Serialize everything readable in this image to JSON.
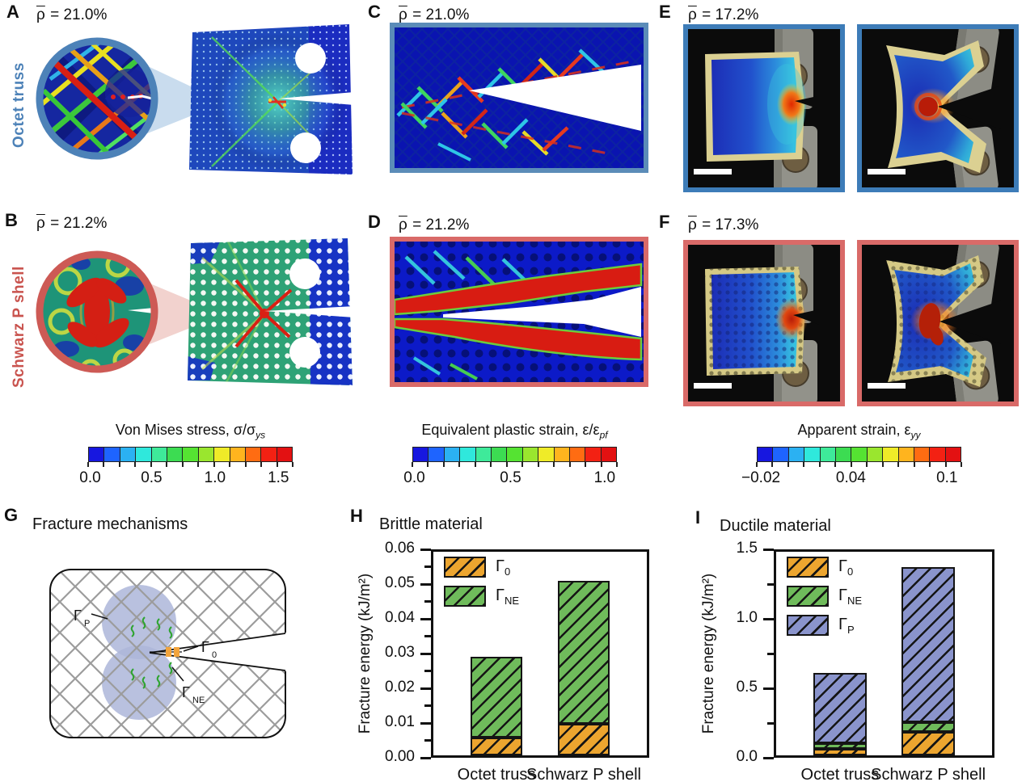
{
  "panels": {
    "a": {
      "letter": "A",
      "rho": "ρ",
      "density": " = 21.0%",
      "side_label": "Octet truss",
      "accent": "#4D82B8"
    },
    "b": {
      "letter": "B",
      "rho": "ρ",
      "density": " = 21.2%",
      "side_label": "Schwarz P shell",
      "accent": "#C9534E"
    },
    "c": {
      "letter": "C",
      "rho": "ρ",
      "density": " = 21.0%",
      "frame_color": "#5B8CB8"
    },
    "d": {
      "letter": "D",
      "rho": "ρ",
      "density": " = 21.2%",
      "frame_color": "#D96A68"
    },
    "e": {
      "letter": "E",
      "rho": "ρ",
      "density": " = 17.2%",
      "frame_color": "#3D7CB8"
    },
    "f": {
      "letter": "F",
      "rho": "ρ",
      "density": " = 17.3%",
      "frame_color": "#D96A68"
    },
    "g": {
      "letter": "G",
      "title": "Fracture mechanisms",
      "gamma_p": "Γ",
      "gamma_p_sub": "P",
      "gamma_0": "Γ",
      "gamma_0_sub": "0",
      "gamma_ne": "Γ",
      "gamma_ne_sub": "NE"
    },
    "h": {
      "letter": "H",
      "title": "Brittle material"
    },
    "i": {
      "letter": "I",
      "title": "Ductile material"
    }
  },
  "colorbars": [
    {
      "title": "Von Mises stress, σ/σ",
      "title_sub": "ys",
      "ticks": [
        "0.0",
        "0.5",
        "1.0",
        "1.5"
      ],
      "tick_pos": [
        1,
        31,
        62,
        93
      ],
      "colors": [
        "#1717E0",
        "#1E64FF",
        "#2BB1F2",
        "#2FE8DC",
        "#3EEA9A",
        "#3CDC52",
        "#55E332",
        "#9AE62E",
        "#EFEB28",
        "#FFB41E",
        "#FF6C12",
        "#F32113",
        "#E31112"
      ]
    },
    {
      "title": "Equivalent plastic strain, ε/ε",
      "title_sub": "pf",
      "ticks": [
        "0.0",
        "0.5",
        "1.0"
      ],
      "tick_pos": [
        1,
        48,
        94
      ],
      "colors": [
        "#1717E0",
        "#1E64FF",
        "#2BB1F2",
        "#2FE8DC",
        "#3EEA9A",
        "#3CDC52",
        "#55E332",
        "#9AE62E",
        "#EFEB28",
        "#FFB41E",
        "#FF6C12",
        "#F32113",
        "#E31112"
      ]
    },
    {
      "title": "Apparent strain, ε",
      "title_sub": "yy",
      "ticks": [
        "−0.02",
        "0.04",
        "0.1"
      ],
      "tick_pos": [
        2,
        46,
        93
      ],
      "colors": [
        "#1717E0",
        "#1E64FF",
        "#2BB1F2",
        "#2FE8DC",
        "#3EEA9A",
        "#3CDC52",
        "#55E332",
        "#9AE62E",
        "#EFEB28",
        "#FFB41E",
        "#FF6C12",
        "#F32113",
        "#E31112"
      ]
    }
  ],
  "chart_data": [
    {
      "id": "H",
      "type": "bar",
      "stacked": true,
      "title": "Brittle material",
      "xlabel": "",
      "ylabel": "Fracture energy (kJ/m²)",
      "ylim": [
        0,
        0.06
      ],
      "grid": false,
      "legend_position": "top-left",
      "bar_outline": "#141414",
      "yticks": [
        {
          "v": 0.0,
          "label": "0.00"
        },
        {
          "v": 0.01,
          "label": "0.01"
        },
        {
          "v": 0.02,
          "label": "0.02"
        },
        {
          "v": 0.03,
          "label": "0.03"
        },
        {
          "v": 0.04,
          "label": "0.04"
        },
        {
          "v": 0.05,
          "label": "0.05"
        },
        {
          "v": 0.06,
          "label": "0.06"
        }
      ],
      "categories": [
        "Octet truss",
        "Schwarz P shell"
      ],
      "series": [
        {
          "label": "Γ",
          "sub": "0",
          "color": "#ECA52F",
          "values": [
            0.0053,
            0.0093
          ]
        },
        {
          "label": "Γ",
          "sub": "NE",
          "color": "#6FBB5B",
          "values": [
            0.0238,
            0.0421
          ]
        }
      ],
      "totals": [
        0.0291,
        0.0514
      ]
    },
    {
      "id": "I",
      "type": "bar",
      "stacked": true,
      "title": "Ductile material",
      "xlabel": "",
      "ylabel": "Fracture energy (kJ/m²)",
      "ylim": [
        0,
        1.5
      ],
      "grid": false,
      "legend_position": "top-left",
      "bar_outline": "#141414",
      "yticks": [
        {
          "v": 0.0,
          "label": "0.0"
        },
        {
          "v": 0.5,
          "label": "0.5"
        },
        {
          "v": 1.0,
          "label": "1.0"
        },
        {
          "v": 1.5,
          "label": "1.5"
        }
      ],
      "categories": [
        "Octet truss",
        "Schwarz P shell"
      ],
      "series": [
        {
          "label": "Γ",
          "sub": "0",
          "color": "#ECA52F",
          "values": [
            0.045,
            0.175
          ]
        },
        {
          "label": "Γ",
          "sub": "NE",
          "color": "#6FBB5B",
          "values": [
            0.045,
            0.07
          ]
        },
        {
          "label": "Γ",
          "sub": "P",
          "color": "#8A94CC",
          "values": [
            0.52,
            1.14
          ]
        }
      ],
      "totals": [
        0.61,
        1.385
      ]
    }
  ]
}
